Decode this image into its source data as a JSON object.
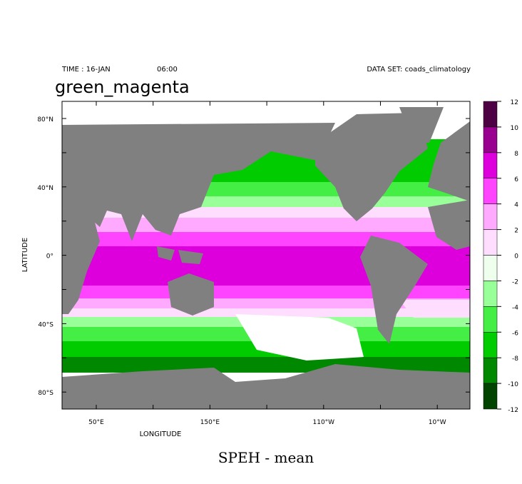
{
  "header": {
    "time": "TIME : 16-JAN",
    "clock": "06:00",
    "dataset": "DATA SET: coads_climatology"
  },
  "title": "green_magenta",
  "caption": "SPEH - mean",
  "map": {
    "xlabel": "LONGITUDE",
    "ylabel": "LATITUDE",
    "yticks": [
      "80°N",
      "40°N",
      "0°",
      "40°S",
      "80°S"
    ],
    "xticks": [
      "50°E",
      "150°E",
      "110°W",
      "10°W"
    ]
  },
  "colorbar": {
    "levels": [
      "12",
      "10",
      "8",
      "6",
      "4",
      "2",
      "0",
      "-2",
      "-4",
      "-6",
      "-8",
      "-10",
      "-12"
    ],
    "colors": [
      "#4d0044",
      "#99008f",
      "#dd00dd",
      "#ff44ff",
      "#ffaaff",
      "#ffddff",
      "#eeffee",
      "#99ff99",
      "#44ee44",
      "#00cc00",
      "#008800",
      "#004400"
    ]
  }
}
